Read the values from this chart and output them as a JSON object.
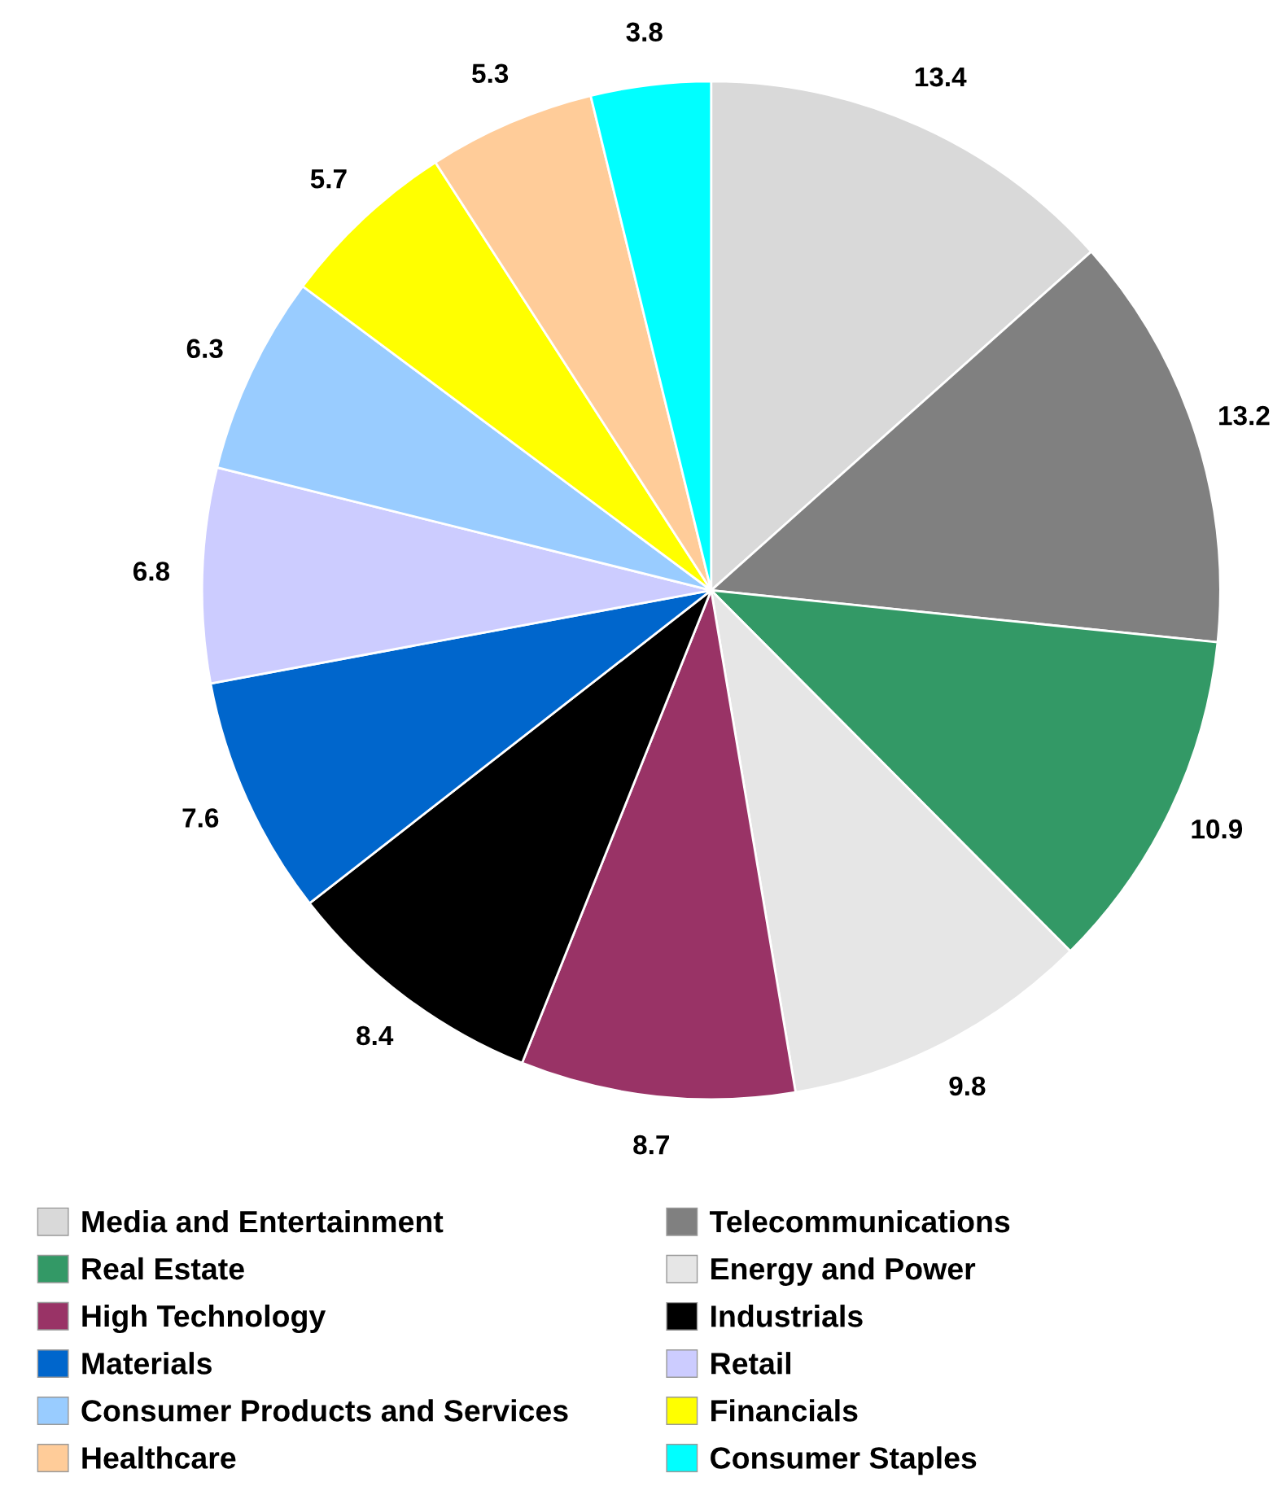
{
  "chart_data": {
    "type": "pie",
    "categories": [
      "Media and Entertainment",
      "Telecommunications",
      "Real Estate",
      "Energy and Power",
      "High Technology",
      "Industrials",
      "Materials",
      "Retail",
      "Consumer Products and Services",
      "Financials",
      "Healthcare",
      "Consumer Staples"
    ],
    "values": [
      13.4,
      13.2,
      10.9,
      9.8,
      8.7,
      8.4,
      7.6,
      6.8,
      6.3,
      5.7,
      5.3,
      3.8
    ],
    "colors": [
      "#d9d9d9",
      "#808080",
      "#339966",
      "#e6e6e6",
      "#993366",
      "#000000",
      "#0066cc",
      "#ccccff",
      "#99ccff",
      "#ffff00",
      "#ffcc99",
      "#00ffff"
    ],
    "data_labels": true,
    "legend": "bottom"
  }
}
